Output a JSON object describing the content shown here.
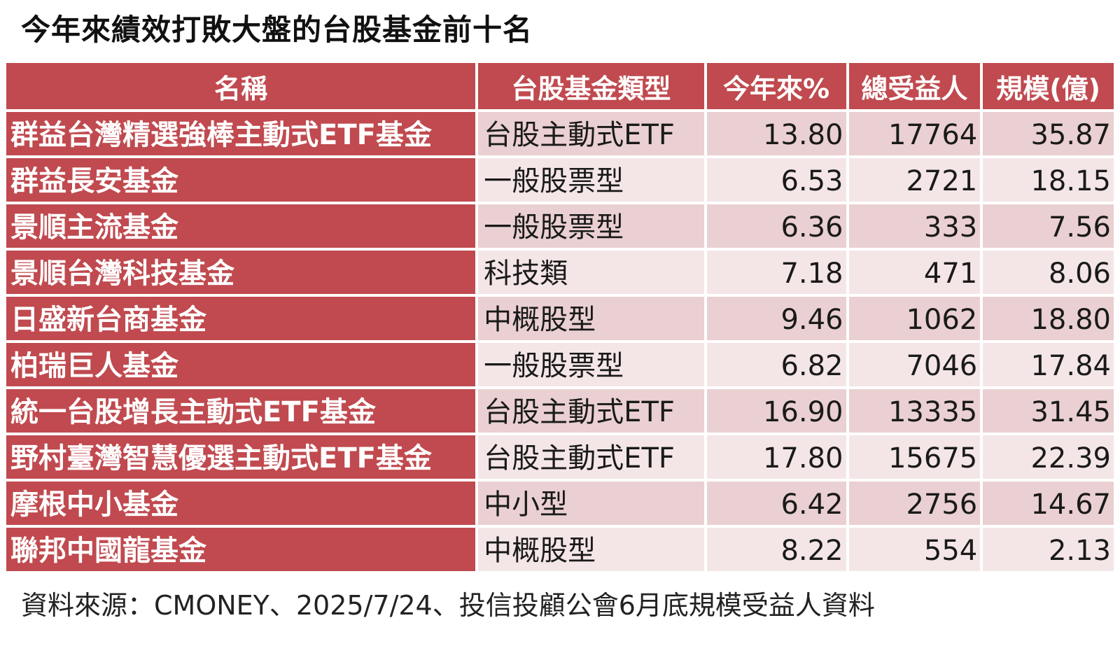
{
  "title": "今年來績效打敗大盤的台股基金前十名",
  "headers": [
    "名稱",
    "台股基金類型",
    "今年來%",
    "總受益人",
    "規模(億)"
  ],
  "rows": [
    {
      "name": "群益台灣精選強棒主動式ETF基金",
      "type": "台股主動式ETF",
      "ytd": "13.80",
      "holders": "17764",
      "size": "35.87"
    },
    {
      "name": "群益長安基金",
      "type": "一般股票型",
      "ytd": "6.53",
      "holders": "2721",
      "size": "18.15"
    },
    {
      "name": "景順主流基金",
      "type": "一般股票型",
      "ytd": "6.36",
      "holders": "333",
      "size": "7.56"
    },
    {
      "name": "景順台灣科技基金",
      "type": "科技類",
      "ytd": "7.18",
      "holders": "471",
      "size": "8.06"
    },
    {
      "name": "日盛新台商基金",
      "type": "中概股型",
      "ytd": "9.46",
      "holders": "1062",
      "size": "18.80"
    },
    {
      "name": "柏瑞巨人基金",
      "type": "一般股票型",
      "ytd": "6.82",
      "holders": "7046",
      "size": "17.84"
    },
    {
      "name": "統一台股增長主動式ETF基金",
      "type": "台股主動式ETF",
      "ytd": "16.90",
      "holders": "13335",
      "size": "31.45"
    },
    {
      "name": "野村臺灣智慧優選主動式ETF基金",
      "type": "台股主動式ETF",
      "ytd": "17.80",
      "holders": "15675",
      "size": "22.39"
    },
    {
      "name": "摩根中小基金",
      "type": "中小型",
      "ytd": "6.42",
      "holders": "2756",
      "size": "14.67"
    },
    {
      "name": "聯邦中國龍基金",
      "type": "中概股型",
      "ytd": "8.22",
      "holders": "554",
      "size": "2.13"
    }
  ],
  "source": "資料來源：CMONEY、2025/7/24、投信投顧公會6月底規模受益人資料",
  "colors": {
    "header_bg": "#c04a4f",
    "row_odd_bg": "#ead0d2",
    "row_even_bg": "#f4e6e7"
  }
}
